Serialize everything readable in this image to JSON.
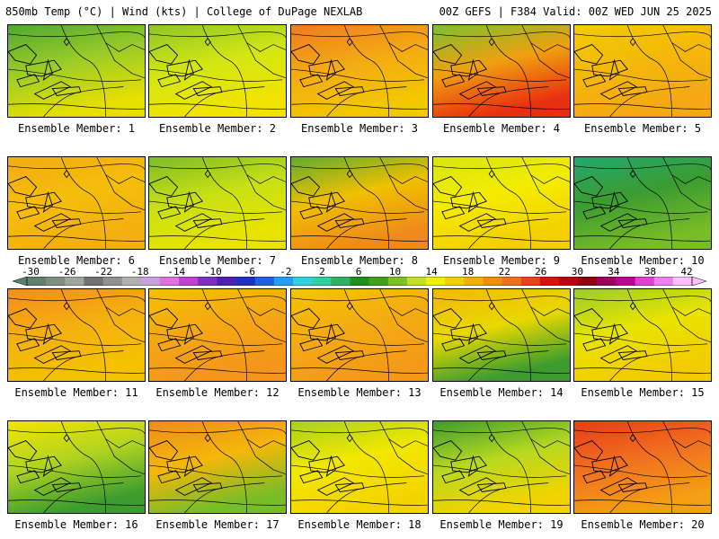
{
  "header": {
    "left": "850mb Temp (°C) | Wind (kts) | College of DuPage NEXLAB",
    "right": "00Z GEFS | F384 Valid: 00Z WED JUN 25 2025"
  },
  "colorbar": {
    "labels": [
      "-30",
      "-26",
      "-22",
      "-18",
      "-14",
      "-10",
      "-6",
      "-2",
      "2",
      "6",
      "10",
      "14",
      "18",
      "22",
      "26",
      "30",
      "34",
      "38",
      "42"
    ],
    "colors": [
      "#5f7f6f",
      "#7f8f7f",
      "#9fa59f",
      "#707070",
      "#909090",
      "#b0b0b0",
      "#c8a0e0",
      "#e070e0",
      "#c040d0",
      "#8030c0",
      "#5020b0",
      "#2030c0",
      "#2060e0",
      "#20a0f0",
      "#30d0e0",
      "#30d0a0",
      "#30b060",
      "#209020",
      "#40a020",
      "#80c020",
      "#c0e020",
      "#f0f000",
      "#f0d000",
      "#f0b000",
      "#f09000",
      "#f07020",
      "#f04020",
      "#e01010",
      "#c00010",
      "#900010",
      "#a00060",
      "#c00090",
      "#e040d0",
      "#f080f0",
      "#ffc0ff"
    ]
  },
  "panels": [
    {
      "label": "Ensemble Member: 1",
      "colors": [
        "#50a830",
        "#9ccc28",
        "#e8e000"
      ]
    },
    {
      "label": "Ensemble Member: 2",
      "colors": [
        "#8cc628",
        "#d2e614",
        "#f2e400"
      ]
    },
    {
      "label": "Ensemble Member: 3",
      "colors": [
        "#f07a20",
        "#f4aa14",
        "#f2c800"
      ]
    },
    {
      "label": "Ensemble Member: 4",
      "colors": [
        "#7cc030",
        "#f0a010",
        "#e83010"
      ]
    },
    {
      "label": "Ensemble Member: 5",
      "colors": [
        "#f2cc00",
        "#f4b80a",
        "#f4a814"
      ]
    },
    {
      "label": "Ensemble Member: 6",
      "colors": [
        "#f4aa14",
        "#f4be0a",
        "#f4b010"
      ]
    },
    {
      "label": "Ensemble Member: 7",
      "colors": [
        "#7cbc28",
        "#c8e014",
        "#e8e400"
      ]
    },
    {
      "label": "Ensemble Member: 8",
      "colors": [
        "#60ac30",
        "#f0c000",
        "#f08a1c"
      ]
    },
    {
      "label": "Ensemble Member: 9",
      "colors": [
        "#d8e610",
        "#f4ec00",
        "#f4d000"
      ]
    },
    {
      "label": "Ensemble Member: 10",
      "colors": [
        "#22a870",
        "#3c9c30",
        "#78bc28"
      ]
    },
    {
      "label": "Ensemble Member: 11",
      "colors": [
        "#f48c1c",
        "#f4b010",
        "#f4c200"
      ]
    },
    {
      "label": "Ensemble Member: 12",
      "colors": [
        "#f4c000",
        "#f4a814",
        "#f4961c"
      ]
    },
    {
      "label": "Ensemble Member: 13",
      "colors": [
        "#f4c400",
        "#f4ac12",
        "#f49a18"
      ]
    },
    {
      "label": "Ensemble Member: 14",
      "colors": [
        "#f4b80a",
        "#e8d800",
        "#3c9c30"
      ]
    },
    {
      "label": "Ensemble Member: 15",
      "colors": [
        "#9ccc28",
        "#e8e400",
        "#f2cc00"
      ]
    },
    {
      "label": "Ensemble Member: 16",
      "colors": [
        "#f4e400",
        "#b0d420",
        "#3c9c30"
      ]
    },
    {
      "label": "Ensemble Member: 17",
      "colors": [
        "#f08a1c",
        "#f4b80a",
        "#78bc28"
      ]
    },
    {
      "label": "Ensemble Member: 18",
      "colors": [
        "#a8d020",
        "#f2e800",
        "#f4d400"
      ]
    },
    {
      "label": "Ensemble Member: 19",
      "colors": [
        "#3c9c30",
        "#b8d820",
        "#f2d400"
      ]
    },
    {
      "label": "Ensemble Member: 20",
      "colors": [
        "#e83c14",
        "#f07020",
        "#f4a014"
      ]
    }
  ]
}
